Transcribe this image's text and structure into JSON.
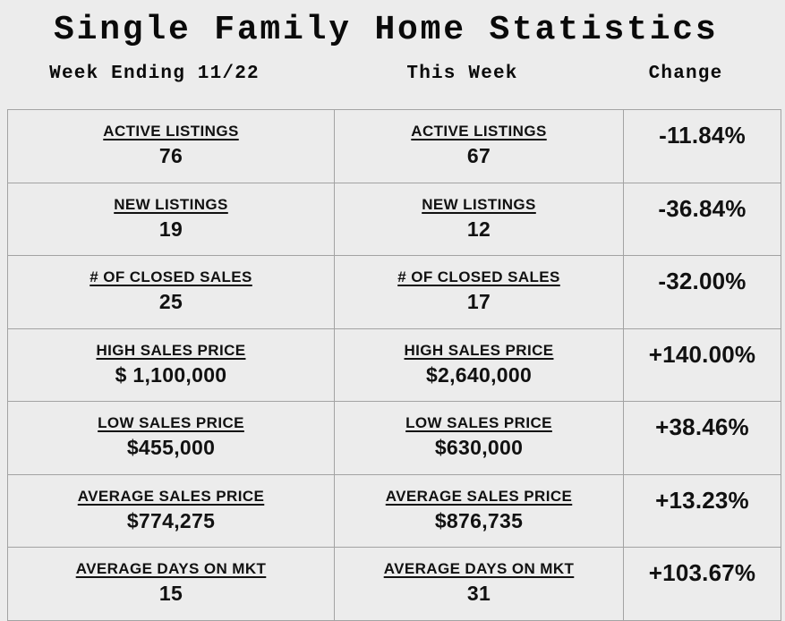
{
  "title": "Single Family Home Statistics",
  "header": {
    "col1": "Week Ending 11/22",
    "col2": "This Week",
    "col3": "Change"
  },
  "rows": [
    {
      "metric": "ACTIVE LISTINGS",
      "last_week": "76",
      "this_week": "67",
      "change": "-11.84%"
    },
    {
      "metric": "NEW LISTINGS",
      "last_week": "19",
      "this_week": "12",
      "change": "-36.84%"
    },
    {
      "metric": "# OF CLOSED SALES",
      "last_week": "25",
      "this_week": "17",
      "change": "-32.00%"
    },
    {
      "metric": "HIGH SALES PRICE",
      "last_week": "$ 1,100,000",
      "this_week": "$2,640,000",
      "change": "+140.00%"
    },
    {
      "metric": "LOW SALES PRICE",
      "last_week": "$455,000",
      "this_week": "$630,000",
      "change": "+38.46%"
    },
    {
      "metric": "AVERAGE SALES PRICE",
      "last_week": "$774,275",
      "this_week": "$876,735",
      "change": "+13.23%"
    },
    {
      "metric": "AVERAGE DAYS ON MKT",
      "last_week": "15",
      "this_week": "31",
      "change": "+103.67%"
    }
  ],
  "colors": {
    "background": "#ececec",
    "border": "#a3a3a3",
    "text": "#111111"
  },
  "chart_data": {
    "type": "table",
    "title": "Single Family Home Statistics",
    "columns": [
      "Week Ending 11/22",
      "This Week",
      "Change"
    ],
    "metrics": [
      "ACTIVE LISTINGS",
      "NEW LISTINGS",
      "# OF CLOSED SALES",
      "HIGH SALES PRICE",
      "LOW SALES PRICE",
      "AVERAGE SALES PRICE",
      "AVERAGE DAYS ON MKT"
    ],
    "week_ending_11_22_values": [
      76,
      19,
      25,
      1100000,
      455000,
      774275,
      15
    ],
    "this_week_values": [
      67,
      12,
      17,
      2640000,
      630000,
      876735,
      31
    ],
    "change_percent": [
      -11.84,
      -36.84,
      -32.0,
      140.0,
      38.46,
      13.23,
      103.67
    ]
  }
}
